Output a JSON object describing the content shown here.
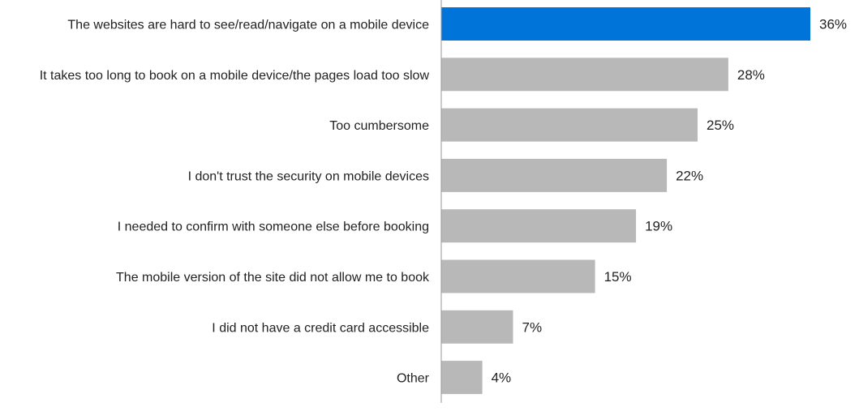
{
  "chart_data": {
    "type": "bar",
    "orientation": "horizontal",
    "categories": [
      "The websites are hard to see/read/navigate on a mobile device",
      "It takes too long to book on a mobile device/the pages load too slow",
      "Too cumbersome",
      "I don't trust the security on mobile devices",
      "I needed to confirm with someone else before booking",
      "The mobile version of the site did not allow me to book",
      "I did not have a credit card accessible",
      "Other"
    ],
    "values": [
      36,
      28,
      25,
      22,
      19,
      15,
      7,
      4
    ],
    "value_labels": [
      "36%",
      "28%",
      "25%",
      "22%",
      "19%",
      "15%",
      "7%",
      "4%"
    ],
    "xlim": [
      0,
      36
    ],
    "grid": false,
    "legend": "none",
    "colors": {
      "highlight": "#0074d9",
      "default": "#b8b8b8",
      "axis": "#9a9a9a",
      "text": "#222222"
    },
    "highlight_index": 0
  }
}
